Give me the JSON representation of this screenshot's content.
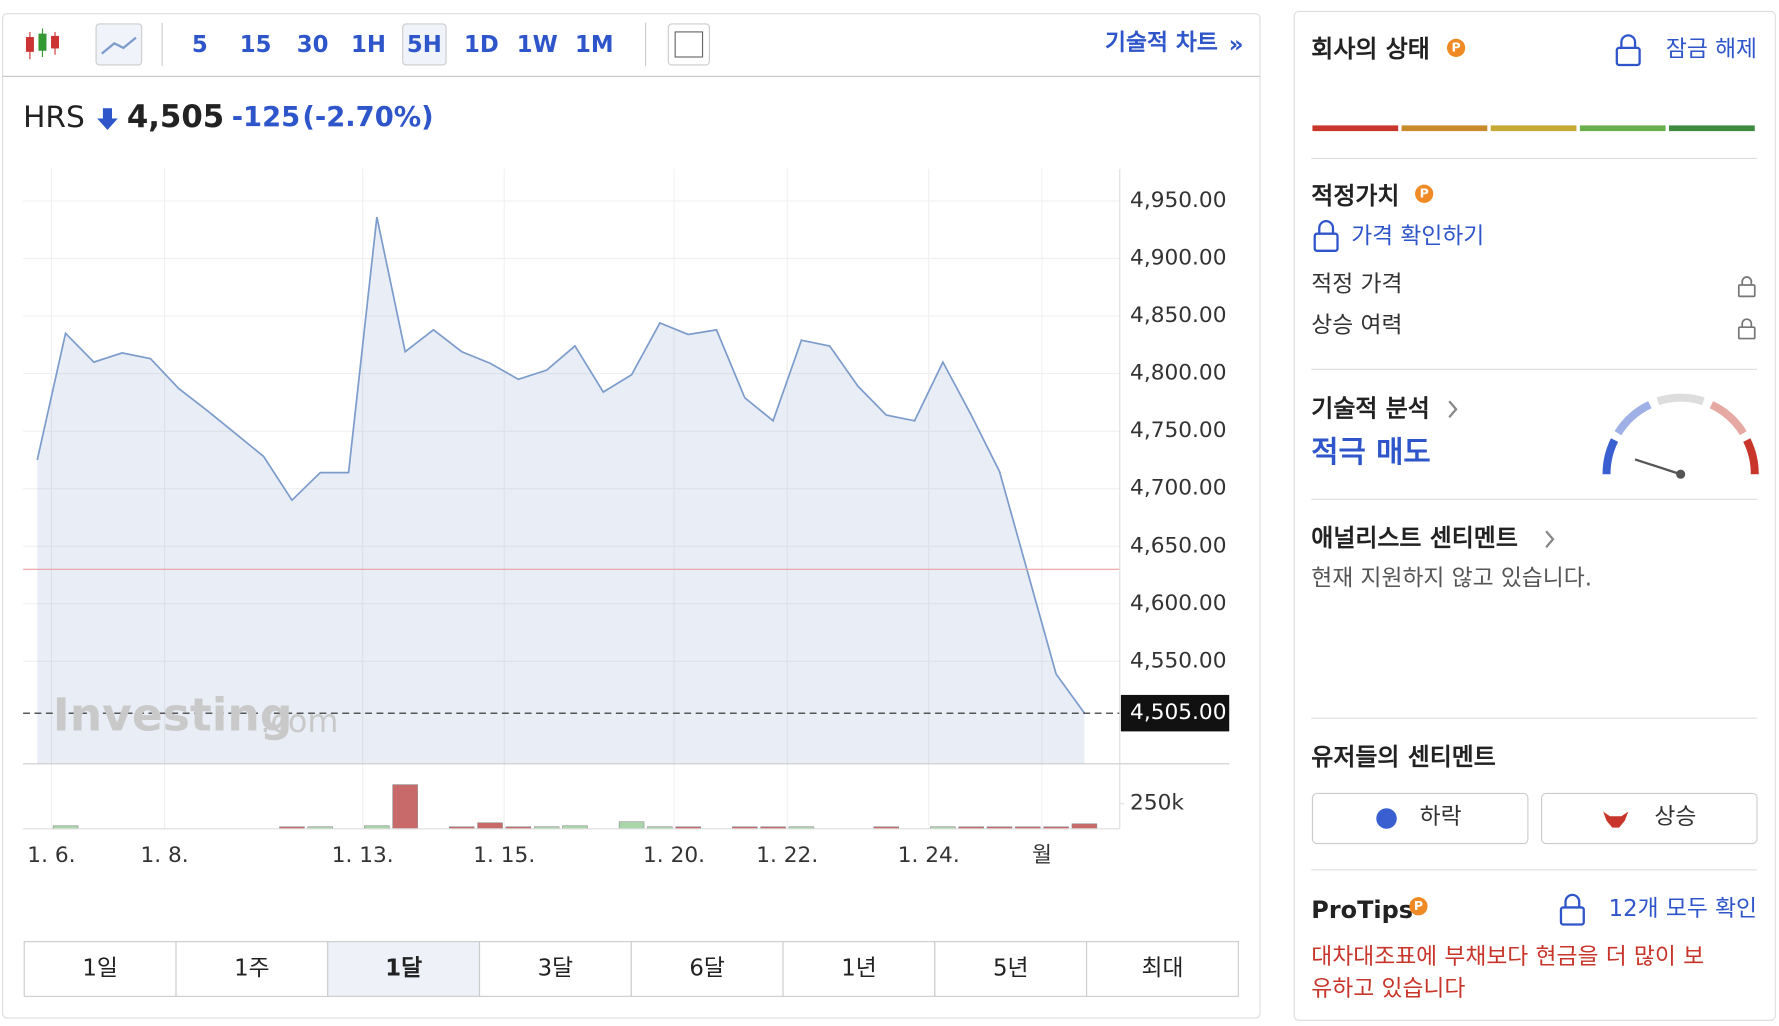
{
  "toolbar": {
    "intervals": [
      "5",
      "15",
      "30",
      "1H",
      "5H",
      "1D",
      "1W",
      "1M"
    ],
    "active": "5H",
    "link": "기술적 차트",
    "link_arrow": "»"
  },
  "quote": {
    "symbol": "HRS",
    "price": "4,505",
    "change": "-125",
    "change_pct": "(-2.70%)"
  },
  "watermark": {
    "brand": "Investing",
    "suffix": ".com"
  },
  "chart_data": {
    "type": "line",
    "values": [
      4725,
      4835,
      4810,
      4818,
      4813,
      4787,
      4768,
      4748,
      4728,
      4690,
      4714,
      4714,
      4936,
      4819,
      4838,
      4819,
      4809,
      4795,
      4803,
      4824,
      4784,
      4799,
      4844,
      4834,
      4838,
      4779,
      4759,
      4829,
      4824,
      4789,
      4764,
      4759,
      4810,
      4764,
      4715,
      4627,
      4539,
      4505
    ],
    "color": "#7c9ccc",
    "xlim": [
      -0.5,
      38.25
    ],
    "xticks": [
      {
        "value": 0.5,
        "label": "1. 6."
      },
      {
        "value": 4.5,
        "label": "1. 8."
      },
      {
        "value": 11.5,
        "label": "1. 13."
      },
      {
        "value": 16.5,
        "label": "1. 15."
      },
      {
        "value": 22.5,
        "label": "1. 20."
      },
      {
        "value": 26.5,
        "label": "1. 22."
      },
      {
        "value": 31.5,
        "label": "1. 24."
      },
      {
        "value": 35.5,
        "label": "월"
      }
    ],
    "ylim": [
      4461,
      4978
    ],
    "yticks": [
      {
        "value": 4550,
        "label": "4,550.00"
      },
      {
        "value": 4600,
        "label": "4,600.00"
      },
      {
        "value": 4650,
        "label": "4,650.00"
      },
      {
        "value": 4700,
        "label": "4,700.00"
      },
      {
        "value": 4750,
        "label": "4,750.00"
      },
      {
        "value": 4800,
        "label": "4,800.00"
      },
      {
        "value": 4850,
        "label": "4,850.00"
      },
      {
        "value": 4900,
        "label": "4,900.00"
      },
      {
        "value": 4950,
        "label": "4,950.00"
      }
    ],
    "reference_line": 4630,
    "reference_color": "#e8a0a0",
    "last_price": {
      "value": 4505,
      "label": "4,505.00"
    },
    "grid": true,
    "volume": [
      null,
      30000,
      null,
      null,
      null,
      null,
      null,
      null,
      null,
      20000,
      20000,
      null,
      30000,
      440000,
      null,
      20000,
      60000,
      20000,
      20000,
      30000,
      null,
      70000,
      20000,
      20000,
      null,
      20000,
      20000,
      20000,
      null,
      null,
      20000,
      null,
      20000,
      20000,
      20000,
      20000,
      20000,
      50000
    ],
    "volume_colors": [
      null,
      "#a9d6a9",
      null,
      null,
      null,
      null,
      null,
      null,
      null,
      "#c86a6a",
      "#a9d6a9",
      null,
      "#a9d6a9",
      "#c86a6a",
      null,
      "#c86a6a",
      "#c86a6a",
      "#c86a6a",
      "#a9d6a9",
      "#a9d6a9",
      null,
      "#a9d6a9",
      "#a9d6a9",
      "#c86a6a",
      null,
      "#c86a6a",
      "#c86a6a",
      "#a9d6a9",
      null,
      null,
      "#c86a6a",
      null,
      "#a9d6a9",
      "#c86a6a",
      "#c86a6a",
      "#c86a6a",
      "#c86a6a",
      "#c86a6a"
    ],
    "y2lim": [
      0,
      625000
    ],
    "y2ticks": [
      {
        "value": 250000,
        "label": "250k"
      }
    ]
  },
  "ranges": {
    "items": [
      "1일",
      "1주",
      "1달",
      "3달",
      "6달",
      "1년",
      "5년",
      "최대"
    ],
    "active": "1달"
  },
  "panel": {
    "health": {
      "title": "회사의 상태",
      "unlock": "잠금 해제",
      "colors": [
        "#c8352b",
        "#c98a2c",
        "#c6a834",
        "#69b04c",
        "#3e8a3e"
      ]
    },
    "fair_value": {
      "title": "적정가치",
      "check": "가격 확인하기",
      "rows": [
        "적정 가격",
        "상승 여력"
      ]
    },
    "technical": {
      "title": "기술적 분석",
      "signal": "적극 매도"
    },
    "analyst": {
      "title": "애널리스트 센티멘트",
      "note": "현재 지원하지 않고 있습니다."
    },
    "users": {
      "title": "유저들의 센티멘트",
      "bear": "하락",
      "bull": "상승"
    },
    "protips": {
      "title": "ProTips",
      "see_all": "12개 모두 확인",
      "tip": [
        "대차대조표에 부채보다 현금을 더 많이 보",
        "유하고 있습니다"
      ]
    }
  }
}
